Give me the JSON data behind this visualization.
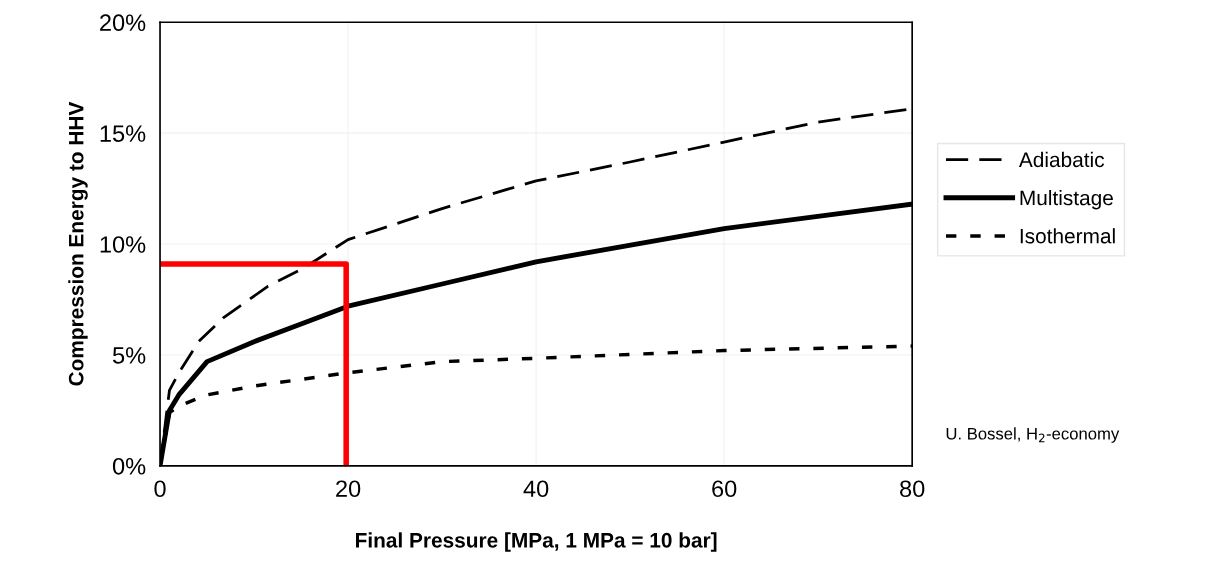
{
  "chart_data": {
    "type": "line",
    "xlabel": "Final Pressure [MPa, 1 MPa = 10 bar]",
    "ylabel": "Compression Energy to HHV",
    "xlim": [
      0,
      80
    ],
    "xticks": [
      0,
      20,
      40,
      60,
      80
    ],
    "ylim": [
      0,
      20
    ],
    "yticks": [
      {
        "value": 0,
        "label": "0%"
      },
      {
        "value": 5,
        "label": "5%"
      },
      {
        "value": 10,
        "label": "10%"
      },
      {
        "value": 15,
        "label": "15%"
      },
      {
        "value": 20,
        "label": "20%"
      }
    ],
    "grid": true,
    "legend": "right",
    "annotations": [
      "U. Bossel, H$_{2}$-economy"
    ],
    "series": [
      {
        "name": "Adiabatic",
        "color": "#000000",
        "line_style": "dashed",
        "x": [
          0,
          1,
          2,
          4.1,
          6.8,
          11.5,
          15.2,
          20,
          30,
          40,
          50,
          60,
          70,
          80
        ],
        "values": [
          0,
          3.4,
          4.2,
          5.6,
          6.7,
          8.1,
          8.9,
          10.2,
          11.6,
          12.85,
          13.7,
          14.6,
          15.5,
          16.1
        ]
      },
      {
        "name": "Multistage",
        "color": "#000000",
        "line_style": "solid",
        "x": [
          0,
          1,
          2,
          5,
          10,
          15,
          20,
          30,
          40,
          60,
          80
        ],
        "values": [
          0,
          2.5,
          3.2,
          4.7,
          5.6,
          6.4,
          7.2,
          8.2,
          9.2,
          10.7,
          11.8
        ]
      },
      {
        "name": "Isothermal",
        "color": "#000000",
        "line_style": "dotted",
        "x": [
          0,
          1,
          2,
          5,
          10,
          20,
          30,
          40,
          60,
          80
        ],
        "values": [
          0,
          2.4,
          2.7,
          3.2,
          3.6,
          4.2,
          4.7,
          4.85,
          5.2,
          5.4
        ]
      },
      {
        "color": "#ff0000",
        "line_style": "solid",
        "x": [
          0,
          19.8,
          19.8
        ],
        "values": [
          9.1,
          9.1,
          0
        ]
      }
    ]
  }
}
